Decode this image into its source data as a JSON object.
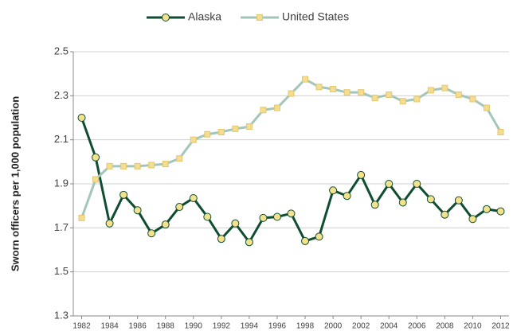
{
  "chart_data": {
    "type": "line",
    "y_label": "Sworn officers per 1,000 population",
    "x": [
      1982,
      1983,
      1984,
      1985,
      1986,
      1987,
      1988,
      1989,
      1990,
      1991,
      1992,
      1993,
      1994,
      1995,
      1996,
      1997,
      1998,
      1999,
      2000,
      2001,
      2002,
      2003,
      2004,
      2005,
      2006,
      2007,
      2008,
      2009,
      2010,
      2011,
      2012
    ],
    "series": [
      {
        "name": "Alaska",
        "color": "#0f4d30",
        "marker_color": "#f2e28e",
        "values": [
          2.2,
          2.02,
          1.72,
          1.85,
          1.78,
          1.675,
          1.715,
          1.795,
          1.835,
          1.75,
          1.65,
          1.72,
          1.635,
          1.745,
          1.75,
          1.765,
          1.64,
          1.66,
          1.87,
          1.845,
          1.94,
          1.805,
          1.9,
          1.815,
          1.9,
          1.83,
          1.76,
          1.825,
          1.74,
          1.785,
          1.775
        ]
      },
      {
        "name": "United States",
        "color": "#a3c6bb",
        "marker_color": "#f5dc8e",
        "values": [
          1.745,
          1.92,
          1.98,
          1.98,
          1.98,
          1.985,
          1.99,
          2.015,
          2.1,
          2.125,
          2.135,
          2.15,
          2.16,
          2.235,
          2.245,
          2.31,
          2.375,
          2.34,
          2.33,
          2.315,
          2.315,
          2.29,
          2.305,
          2.275,
          2.285,
          2.325,
          2.335,
          2.305,
          2.285,
          2.245,
          2.135
        ]
      }
    ],
    "xlim": [
      1981.4,
      2012.6
    ],
    "xticks": [
      1982,
      1984,
      1986,
      1988,
      1990,
      1992,
      1994,
      1996,
      1998,
      2000,
      2002,
      2004,
      2006,
      2008,
      2010,
      2012
    ],
    "ylim": [
      1.3,
      2.5
    ],
    "yticks": [
      1.3,
      1.5,
      1.7,
      1.9,
      2.1,
      2.3,
      2.5
    ],
    "grid": true,
    "legend": "top"
  }
}
